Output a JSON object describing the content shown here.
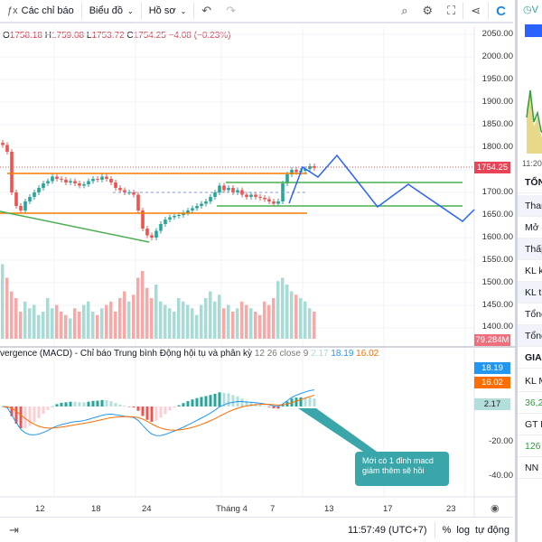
{
  "toolbar": {
    "indicators": "Các chỉ báo",
    "chart": "Biểu đồ",
    "profile": "Hồ sơ",
    "undo": "↶",
    "redo": "↷"
  },
  "legend": {
    "o_label": "O",
    "o": "1758.18",
    "h_label": "H",
    "h": "1759.08",
    "l_label": "L",
    "l": "1753.72",
    "c_label": "C",
    "c": "1754.25",
    "chg": "−4.08 (−0.23%)"
  },
  "price_axis": [
    "2050.00",
    "2000.00",
    "1950.00",
    "1900.00",
    "1850.00",
    "1800.00",
    "1700.00",
    "1650.00",
    "1600.00",
    "1550.00",
    "1500.00",
    "1450.00",
    "1400.00"
  ],
  "last_price": "1754.25",
  "last_volume": "79.284M",
  "macd": {
    "title": "vergence (MACD) - Chỉ báo Trung bình Động hội tụ và phân kỳ",
    "params": "12 26 close 9",
    "hist": "2.17",
    "macd": "18.19",
    "signal": "16.02",
    "axis": [
      "-20.00",
      "-40.00"
    ]
  },
  "time_axis": [
    "12",
    "18",
    "24",
    "Tháng 4",
    "7",
    "13",
    "17",
    "23"
  ],
  "note": "Mới có 1 đỉnh macd giảm thêm sẽ hồi",
  "bottom": {
    "clock": "11:57:49 (UTC+7)",
    "percent": "%",
    "log": "log",
    "auto": "tự động"
  },
  "right_panel": {
    "top": "V",
    "mini_time": "11:20",
    "header": "TỔN",
    "rows": [
      "Thar",
      "Mở",
      "Thấp",
      "KL k",
      "KL t",
      "Tổng",
      "Tổng"
    ],
    "section": "GIA",
    "rows2": [
      "KL M",
      "36,2",
      "GT N",
      "126",
      "NN"
    ]
  },
  "colors": {
    "up": "#26a69a",
    "down": "#ef5350",
    "macd": "#2196f3",
    "signal": "#ff6d00",
    "level": "#f57c00",
    "trend": "#4caf50",
    "projection": "#2962ff"
  },
  "chart_data": {
    "type": "candlestick",
    "closes": [
      1805,
      1790,
      1700,
      1670,
      1660,
      1680,
      1690,
      1700,
      1710,
      1720,
      1725,
      1735,
      1730,
      1728,
      1722,
      1725,
      1720,
      1715,
      1718,
      1725,
      1730,
      1728,
      1735,
      1730,
      1722,
      1710,
      1705,
      1700,
      1700,
      1695,
      1660,
      1620,
      1605,
      1600,
      1615,
      1630,
      1640,
      1645,
      1648,
      1650,
      1655,
      1660,
      1665,
      1670,
      1675,
      1680,
      1690,
      1700,
      1715,
      1705,
      1710,
      1700,
      1705,
      1695,
      1690,
      1695,
      1690,
      1688,
      1685,
      1680,
      1675,
      1680,
      1720,
      1740,
      1750,
      1745,
      1748,
      1752,
      1758,
      1754.25
    ],
    "volumes": [
      110,
      90,
      70,
      60,
      40,
      55,
      45,
      50,
      35,
      40,
      60,
      45,
      50,
      40,
      35,
      30,
      45,
      40,
      50,
      55,
      40,
      35,
      45,
      50,
      55,
      40,
      60,
      70,
      55,
      65,
      90,
      100,
      75,
      60,
      80,
      55,
      50,
      45,
      40,
      60,
      55,
      50,
      45,
      35,
      50,
      60,
      70,
      55,
      65,
      45,
      50,
      40,
      45,
      55,
      50,
      45,
      40,
      35,
      55,
      50,
      60,
      85,
      90,
      80,
      70,
      65,
      60,
      55,
      45,
      40
    ]
  }
}
